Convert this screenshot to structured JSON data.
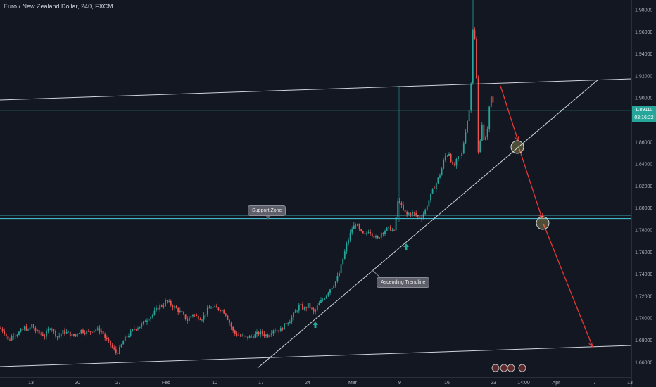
{
  "header": {
    "title": "Euro / New Zealand Dollar, 240, FXCM"
  },
  "annotations": {
    "support_zone": "Support Zone",
    "ascending_trendline": "Ascending Trendline"
  },
  "price_tag": {
    "price": "1.89110",
    "countdown": "03:16:22"
  },
  "colors": {
    "background": "#131722",
    "up": "#26a69a",
    "down": "#ef5350",
    "support": "#4dd0e1",
    "arrow_projection": "#e53935",
    "text": "#b2b5be"
  },
  "icons": [
    "event-icon",
    "event-icon",
    "event-icon",
    "event-icon"
  ],
  "chart_data": {
    "type": "candlestick",
    "title": "Euro / New Zealand Dollar, 240, FXCM",
    "x_ticks": [
      "13",
      "20",
      "27",
      "Feb",
      "10",
      "17",
      "24",
      "Mar",
      "9",
      "16",
      "23",
      "14:00",
      "Apr",
      "7",
      "13"
    ],
    "y_ticks": [
      "1.98000",
      "1.96000",
      "1.94000",
      "1.92000",
      "1.90000",
      "1.88000",
      "1.86000",
      "1.84000",
      "1.82000",
      "1.80000",
      "1.78000",
      "1.76000",
      "1.74000",
      "1.72000",
      "1.70000",
      "1.68000",
      "1.66000"
    ],
    "ylim": [
      1.656,
      1.99
    ],
    "last_price": 1.8911,
    "support_zone": [
      1.7905,
      1.7935
    ],
    "close_path": [
      [
        0,
        1.691
      ],
      [
        6,
        1.688
      ],
      [
        12,
        1.679
      ],
      [
        18,
        1.685
      ],
      [
        24,
        1.686
      ],
      [
        30,
        1.688
      ],
      [
        36,
        1.692
      ],
      [
        40,
        1.688
      ],
      [
        45,
        1.694
      ],
      [
        50,
        1.689
      ],
      [
        56,
        1.686
      ],
      [
        64,
        1.684
      ],
      [
        72,
        1.693
      ],
      [
        76,
        1.688
      ],
      [
        82,
        1.683
      ],
      [
        90,
        1.688
      ],
      [
        98,
        1.686
      ],
      [
        105,
        1.684
      ],
      [
        115,
        1.689
      ],
      [
        125,
        1.687
      ],
      [
        135,
        1.69
      ],
      [
        145,
        1.688
      ],
      [
        150,
        1.681
      ],
      [
        157,
        1.676
      ],
      [
        162,
        1.671
      ],
      [
        166,
        1.668
      ],
      [
        170,
        1.672
      ],
      [
        176,
        1.68
      ],
      [
        184,
        1.686
      ],
      [
        192,
        1.691
      ],
      [
        200,
        1.693
      ],
      [
        210,
        1.7
      ],
      [
        218,
        1.704
      ],
      [
        225,
        1.71
      ],
      [
        232,
        1.712
      ],
      [
        236,
        1.716
      ],
      [
        243,
        1.712
      ],
      [
        252,
        1.708
      ],
      [
        260,
        1.703
      ],
      [
        266,
        1.698
      ],
      [
        274,
        1.704
      ],
      [
        280,
        1.701
      ],
      [
        288,
        1.7
      ],
      [
        294,
        1.707
      ],
      [
        300,
        1.71
      ],
      [
        306,
        1.709
      ],
      [
        314,
        1.708
      ],
      [
        320,
        1.705
      ],
      [
        326,
        1.696
      ],
      [
        332,
        1.687
      ],
      [
        340,
        1.684
      ],
      [
        350,
        1.682
      ],
      [
        360,
        1.684
      ],
      [
        370,
        1.687
      ],
      [
        380,
        1.684
      ],
      [
        388,
        1.69
      ],
      [
        398,
        1.689
      ],
      [
        406,
        1.695
      ],
      [
        414,
        1.7
      ],
      [
        420,
        1.706
      ],
      [
        426,
        1.712
      ],
      [
        432,
        1.708
      ],
      [
        438,
        1.712
      ],
      [
        446,
        1.705
      ],
      [
        452,
        1.712
      ],
      [
        460,
        1.718
      ],
      [
        468,
        1.726
      ],
      [
        476,
        1.732
      ],
      [
        482,
        1.741
      ],
      [
        488,
        1.756
      ],
      [
        494,
        1.77
      ],
      [
        500,
        1.781
      ],
      [
        506,
        1.786
      ],
      [
        512,
        1.778
      ],
      [
        518,
        1.775
      ],
      [
        524,
        1.78
      ],
      [
        530,
        1.776
      ],
      [
        536,
        1.771
      ],
      [
        542,
        1.778
      ],
      [
        548,
        1.78
      ],
      [
        554,
        1.782
      ],
      [
        560,
        1.778
      ],
      [
        566,
        1.81
      ],
      [
        572,
        1.798
      ],
      [
        578,
        1.794
      ],
      [
        585,
        1.796
      ],
      [
        592,
        1.793
      ],
      [
        597,
        1.791
      ],
      [
        603,
        1.796
      ],
      [
        608,
        1.805
      ],
      [
        614,
        1.815
      ],
      [
        620,
        1.823
      ],
      [
        626,
        1.832
      ],
      [
        632,
        1.847
      ],
      [
        638,
        1.85
      ],
      [
        644,
        1.836
      ],
      [
        650,
        1.845
      ],
      [
        656,
        1.848
      ],
      [
        662,
        1.873
      ],
      [
        668,
        1.893
      ],
      [
        672,
        1.967
      ],
      [
        676,
        1.943
      ],
      [
        680,
        1.84
      ],
      [
        684,
        1.882
      ],
      [
        688,
        1.857
      ],
      [
        692,
        1.869
      ],
      [
        697,
        1.903
      ],
      [
        702,
        1.893
      ]
    ]
  }
}
